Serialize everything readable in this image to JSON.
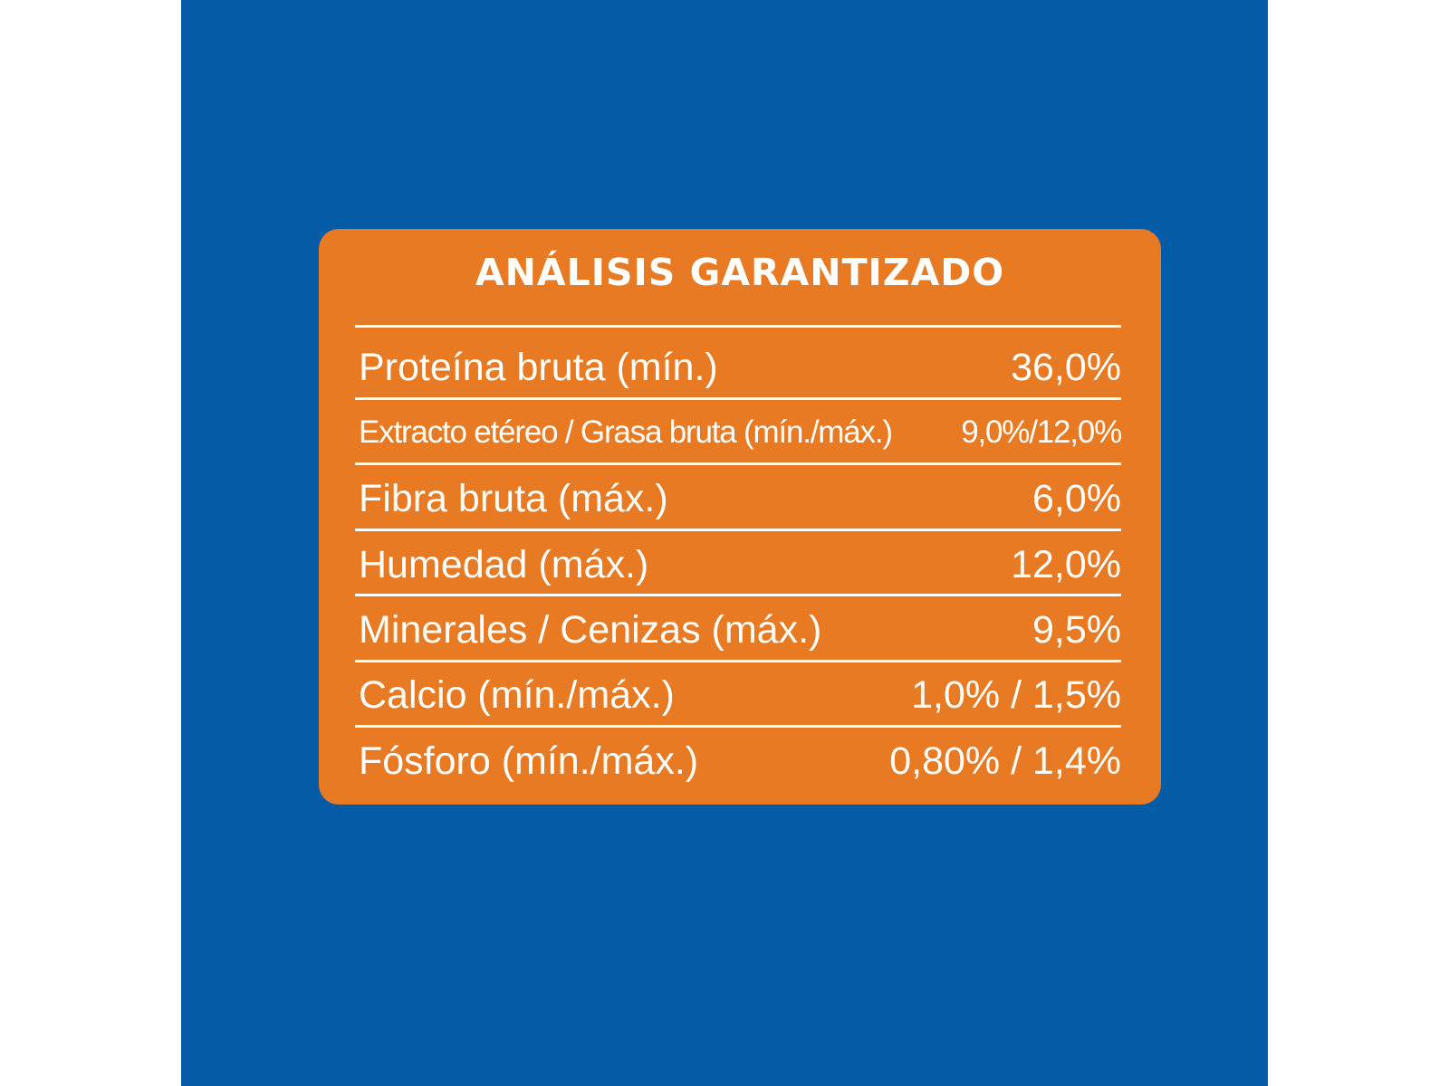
{
  "colors": {
    "background_panel": "#045ca7",
    "card": "#e77a22",
    "text": "#ffffff"
  },
  "title": "ANÁLISIS GARANTIZADO",
  "rows": [
    {
      "label": "Proteína bruta (mín.)",
      "value": "36,0%"
    },
    {
      "label": "Extracto etéreo / Grasa bruta (mín./máx.)",
      "value": "9,0%/12,0%"
    },
    {
      "label": "Fibra bruta (máx.)",
      "value": "6,0%"
    },
    {
      "label": "Humedad (máx.)",
      "value": "12,0%"
    },
    {
      "label": "Minerales / Cenizas (máx.)",
      "value": "9,5%"
    },
    {
      "label": "Calcio (mín./máx.)",
      "value": "1,0% / 1,5%"
    },
    {
      "label": "Fósforo (mín./máx.)",
      "value": "0,80% / 1,4%"
    }
  ]
}
